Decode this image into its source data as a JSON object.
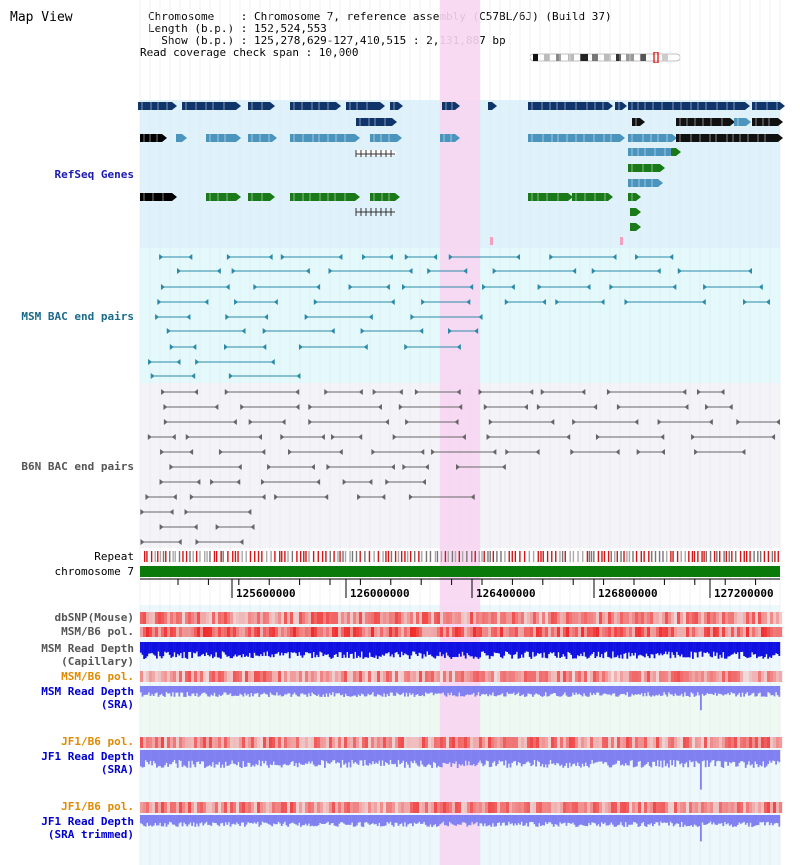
{
  "page": {
    "title": "Map View",
    "chromosome_label": "Chromosome    : Chromosome 7, reference assembly (C57BL/6J) (Build 37)",
    "length_label": "Length (b.p.) : 152,524,553",
    "show_label": "  Show (b.p.) : 125,278,629-127,410,515 : 2,131,887 bp",
    "coverage_label": "Read coverage check span : 10,000"
  },
  "tracks": {
    "refseq": "RefSeq Genes",
    "msm_bac": "MSM BAC end pairs",
    "b6n_bac": "B6N BAC end pairs",
    "repeat": "Repeat",
    "chromosome": "chromosome 7",
    "dbsnp": "dbSNP(Mouse)",
    "msm_b6_pol": "MSM/B6 pol.",
    "msm_read_depth_cap_1": "MSM Read Depth",
    "msm_read_depth_cap_2": "(Capillary)",
    "msm_b6_pol_sra": "MSM/B6 pol.",
    "msm_read_depth_sra_1": "MSM Read Depth",
    "msm_read_depth_sra_2": "(SRA)",
    "jf1_b6_pol": "JF1/B6 pol.",
    "jf1_read_depth_sra_1": "JF1 Read Depth",
    "jf1_read_depth_sra_2": "(SRA)",
    "jf1_b6_pol_trim": "JF1/B6 pol.",
    "jf1_read_depth_trim_1": "JF1 Read Depth",
    "jf1_read_depth_trim_2": "(SRA trimmed)"
  },
  "axis": {
    "ticks": [
      "125600000",
      "126000000",
      "126400000",
      "126800000",
      "127200000"
    ]
  },
  "colors": {
    "highlight": "#f7d6f2",
    "refseq_bg": "#dff1fb",
    "msm_bac_bg": "#e4f9fb",
    "b6n_bg": "#f4f4f8",
    "depth_bg": "#eef9f2",
    "gene_navy": "#10356b",
    "gene_teal": "#4a94bd",
    "gene_green": "#1a7a1a",
    "bac_teal": "#2a8aa8",
    "bac_gray": "#666666",
    "chrom_green": "#0a7a0a",
    "depth_blue": "#1010e0",
    "depth_light": "#8080f0"
  }
}
